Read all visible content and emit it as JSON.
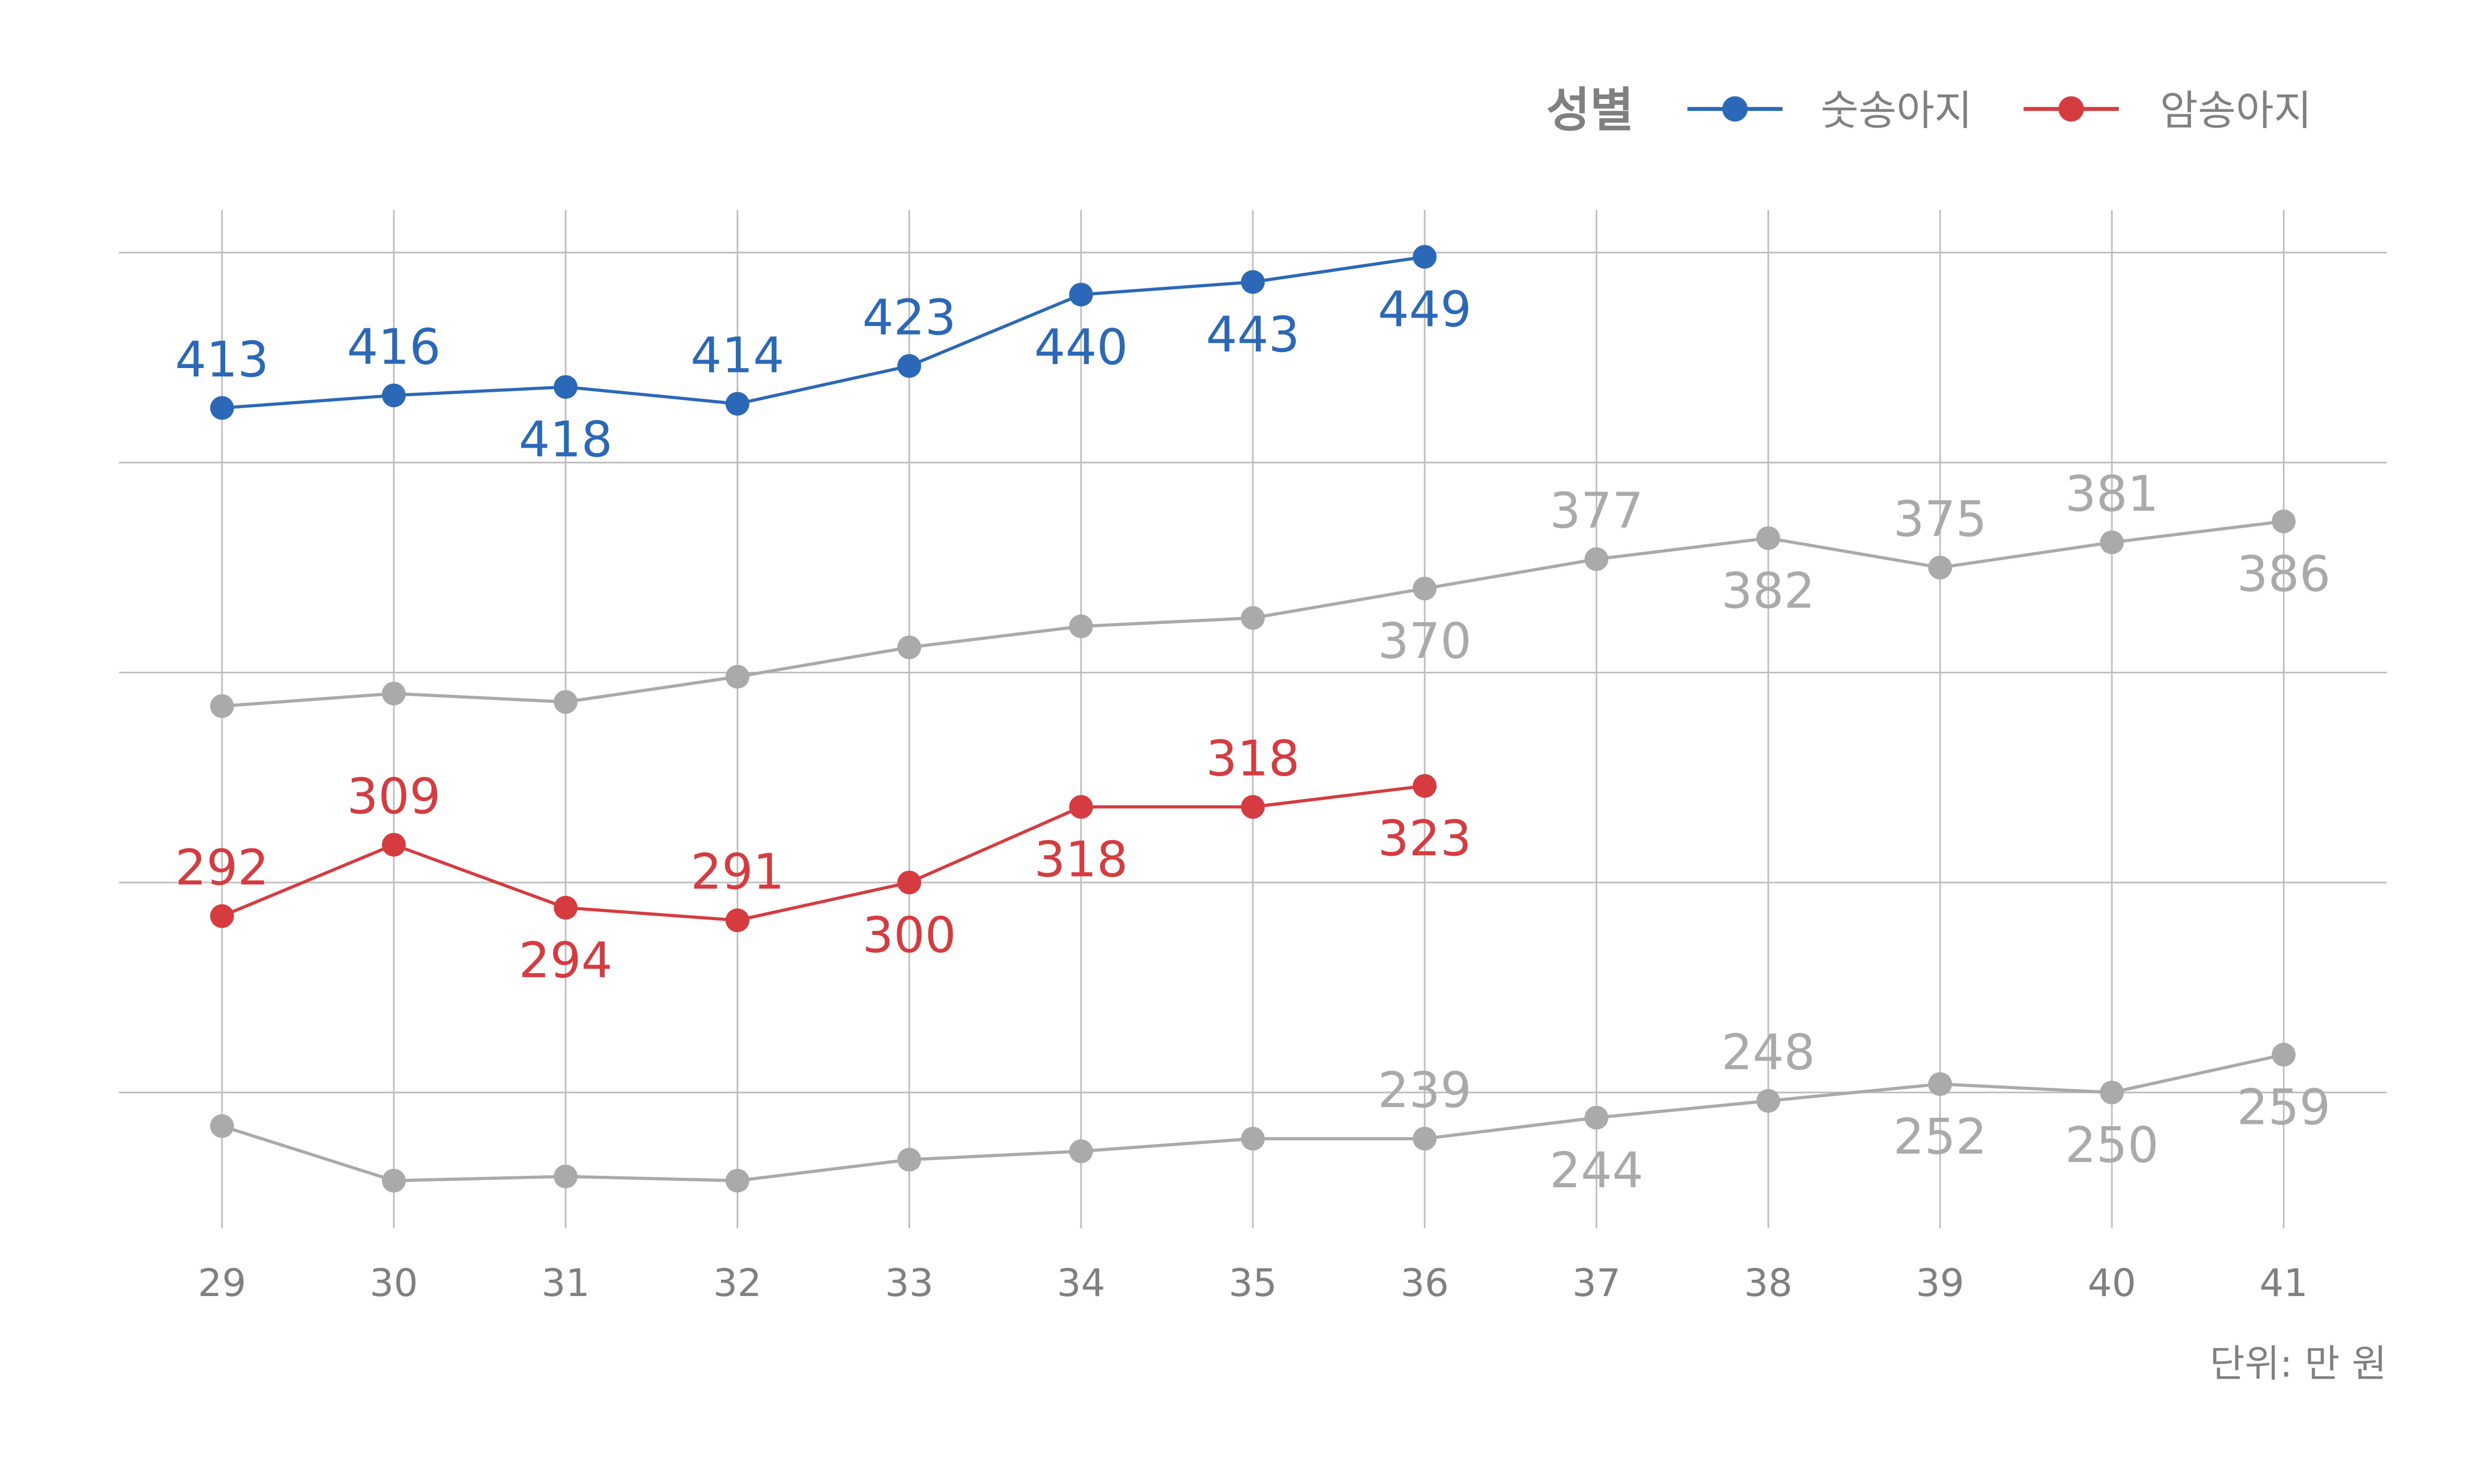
{
  "chart_data": {
    "type": "line",
    "x": [
      29,
      30,
      31,
      32,
      33,
      34,
      35,
      36,
      37,
      38,
      39,
      40,
      41
    ],
    "ylim": [
      215,
      460
    ],
    "yticks": [
      250,
      300,
      350,
      400,
      450
    ],
    "grid": true,
    "legend": {
      "title": "성별",
      "placement": "top-right",
      "entries": [
        "숫송아지",
        "암송아지"
      ]
    },
    "unit_note": "단위: 만 원",
    "series": [
      {
        "key": "gray_upper",
        "name": null,
        "color": "#aaaaaa",
        "highlight": false,
        "values": [
          342,
          345,
          343,
          349,
          356,
          361,
          363,
          370,
          377,
          382,
          375,
          381,
          386
        ],
        "labels": [
          null,
          null,
          null,
          null,
          null,
          null,
          null,
          "370",
          "377",
          "382",
          "375",
          "381",
          "386"
        ],
        "label_pos": [
          null,
          null,
          null,
          null,
          null,
          null,
          null,
          "below",
          "above",
          "below",
          "above",
          "above",
          "below"
        ]
      },
      {
        "key": "gray_lower",
        "name": null,
        "color": "#aaaaaa",
        "highlight": false,
        "values": [
          242,
          229,
          230,
          229,
          234,
          236,
          239,
          239,
          244,
          248,
          252,
          250,
          259
        ],
        "labels": [
          null,
          null,
          null,
          null,
          null,
          null,
          null,
          "239",
          "244",
          "248",
          "252",
          "250",
          "259"
        ],
        "label_pos": [
          null,
          null,
          null,
          null,
          null,
          null,
          null,
          "above",
          "below",
          "above",
          "below",
          "below",
          "below"
        ]
      },
      {
        "key": "male",
        "name": "숫송아지",
        "color": "#2b68b8",
        "highlight": true,
        "values": [
          413,
          416,
          418,
          414,
          423,
          440,
          443,
          449,
          null,
          null,
          null,
          null,
          null
        ],
        "labels": [
          "413",
          "416",
          "418",
          "414",
          "423",
          "440",
          "443",
          "449",
          null,
          null,
          null,
          null,
          null
        ],
        "label_pos": [
          "above",
          "above",
          "below",
          "above",
          "above",
          "below",
          "below",
          "below",
          null,
          null,
          null,
          null,
          null
        ]
      },
      {
        "key": "female",
        "name": "암송아지",
        "color": "#d63b3f",
        "highlight": true,
        "values": [
          292,
          309,
          294,
          291,
          300,
          318,
          318,
          323,
          null,
          null,
          null,
          null,
          null
        ],
        "labels": [
          "292",
          "309",
          "294",
          "291",
          "300",
          "318",
          "318",
          "323",
          null,
          null,
          null,
          null,
          null
        ],
        "label_pos": [
          "above",
          "above",
          "below",
          "above",
          "below",
          "below",
          "above",
          "below",
          null,
          null,
          null,
          null,
          null
        ]
      }
    ]
  }
}
